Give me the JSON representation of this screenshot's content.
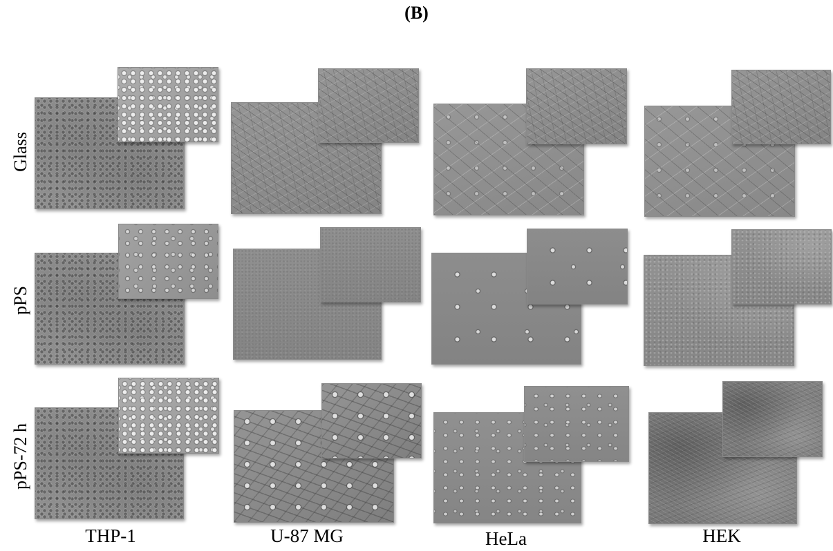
{
  "panel_label": "(B)",
  "row_labels": [
    "Glass",
    "pPS",
    "pPS-72 h"
  ],
  "column_labels": [
    "THP-1",
    "U-87 MG",
    "HeLa",
    "HEK"
  ]
}
